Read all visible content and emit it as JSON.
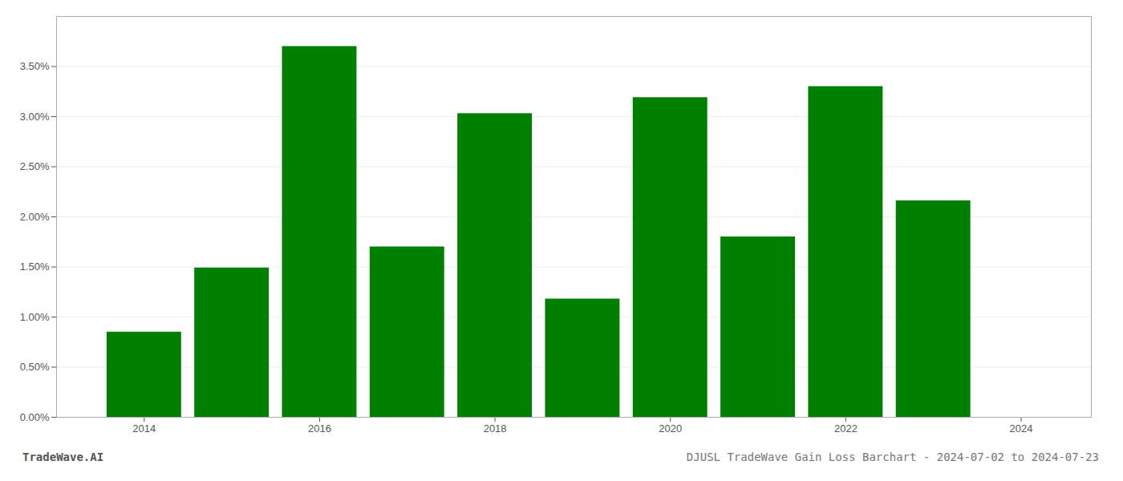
{
  "chart_data": {
    "type": "bar",
    "title": "DJUSL TradeWave Gain Loss Barchart - 2024-07-02 to 2024-07-23",
    "annotations": [
      "TradeWave.AI"
    ],
    "x": [
      2014,
      2015,
      2016,
      2017,
      2018,
      2019,
      2020,
      2021,
      2022,
      2023
    ],
    "values": [
      0.0085,
      0.0149,
      0.037,
      0.017,
      0.0303,
      0.0118,
      0.0319,
      0.018,
      0.033,
      0.0216
    ],
    "color": "#008000",
    "xlim": [
      2013.0,
      2024.8
    ],
    "xticks": [
      2014,
      2016,
      2018,
      2020,
      2022,
      2024
    ],
    "ylim": [
      0,
      0.04
    ],
    "yticks": [
      {
        "value": 0.0,
        "label": "0.00%"
      },
      {
        "value": 0.005,
        "label": "0.50%"
      },
      {
        "value": 0.01,
        "label": "1.00%"
      },
      {
        "value": 0.015,
        "label": "1.50%"
      },
      {
        "value": 0.02,
        "label": "2.00%"
      },
      {
        "value": 0.025,
        "label": "2.50%"
      },
      {
        "value": 0.03,
        "label": "3.00%"
      },
      {
        "value": 0.035,
        "label": "3.50%"
      }
    ],
    "grid": true
  }
}
